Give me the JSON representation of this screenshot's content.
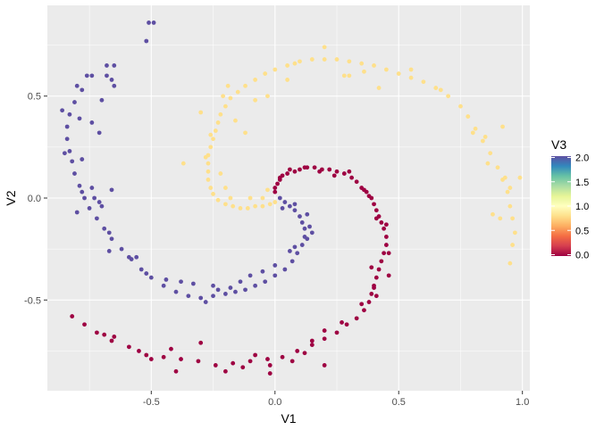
{
  "chart_data": {
    "type": "scatter",
    "title": "",
    "xlabel": "V1",
    "ylabel": "V2",
    "xlim": [
      -0.92,
      1.03
    ],
    "ylim": [
      -0.945,
      0.945
    ],
    "x_ticks": [
      {
        "value": -0.5,
        "label": "-0.5"
      },
      {
        "value": 0.0,
        "label": "0.0"
      },
      {
        "value": 0.5,
        "label": "0.5"
      },
      {
        "value": 1.0,
        "label": "1.0"
      }
    ],
    "y_ticks": [
      {
        "value": -0.5,
        "label": "-0.5"
      },
      {
        "value": 0.0,
        "label": "0.0"
      },
      {
        "value": 0.5,
        "label": "0.5"
      }
    ],
    "grid": true,
    "panel_background": "#ebebeb",
    "grid_color": "#ffffff",
    "color_scale": {
      "title": "V3",
      "domain": [
        0,
        2
      ],
      "palette": "Spectral",
      "stops": [
        "#9e0142",
        "#d53e4f",
        "#f46d43",
        "#fdae61",
        "#fee08b",
        "#ffffbf",
        "#e6f598",
        "#abdda4",
        "#66c2a5",
        "#3288bd",
        "#5e4fa2"
      ],
      "breaks": [
        {
          "value": 2.0,
          "label": "2.0"
        },
        {
          "value": 1.5,
          "label": "1.5"
        },
        {
          "value": 1.0,
          "label": "1.0"
        },
        {
          "value": 0.5,
          "label": "0.5"
        },
        {
          "value": 0.0,
          "label": "0.0"
        }
      ],
      "legend_position": "right"
    },
    "series": [
      {
        "v3": 0,
        "color": "#9e0142",
        "points": [
          [
            0.0,
            0.03
          ],
          [
            0.0,
            0.05
          ],
          [
            0.01,
            0.07
          ],
          [
            0.02,
            0.09
          ],
          [
            0.03,
            0.11
          ],
          [
            0.05,
            0.12
          ],
          [
            0.08,
            0.13
          ],
          [
            0.1,
            0.14
          ],
          [
            0.13,
            0.15
          ],
          [
            0.16,
            0.15
          ],
          [
            0.19,
            0.14
          ],
          [
            0.22,
            0.14
          ],
          [
            0.25,
            0.13
          ],
          [
            0.28,
            0.12
          ],
          [
            0.31,
            0.1
          ],
          [
            0.33,
            0.08
          ],
          [
            0.35,
            0.05
          ],
          [
            0.37,
            0.03
          ],
          [
            0.39,
            0.0
          ],
          [
            0.4,
            -0.03
          ],
          [
            0.41,
            -0.06
          ],
          [
            0.42,
            -0.09
          ],
          [
            0.43,
            -0.12
          ],
          [
            0.44,
            -0.15
          ],
          [
            0.45,
            -0.19
          ],
          [
            0.45,
            -0.23
          ],
          [
            0.44,
            -0.27
          ],
          [
            0.43,
            -0.31
          ],
          [
            0.42,
            -0.35
          ],
          [
            0.41,
            -0.39
          ],
          [
            0.4,
            -0.43
          ],
          [
            0.39,
            -0.47
          ],
          [
            0.38,
            -0.51
          ],
          [
            0.36,
            -0.55
          ],
          [
            0.33,
            -0.59
          ],
          [
            0.29,
            -0.62
          ],
          [
            0.25,
            -0.66
          ],
          [
            0.2,
            -0.69
          ],
          [
            0.15,
            -0.72
          ],
          [
            0.09,
            -0.75
          ],
          [
            0.03,
            -0.78
          ],
          [
            -0.03,
            -0.79
          ],
          [
            -0.1,
            -0.8
          ],
          [
            -0.17,
            -0.81
          ],
          [
            -0.24,
            -0.82
          ],
          [
            -0.31,
            -0.8
          ],
          [
            -0.38,
            -0.79
          ],
          [
            -0.45,
            -0.78
          ],
          [
            -0.52,
            -0.77
          ],
          [
            -0.59,
            -0.73
          ],
          [
            -0.66,
            -0.7
          ],
          [
            -0.72,
            -0.66
          ],
          [
            -0.77,
            -0.62
          ],
          [
            -0.82,
            -0.58
          ],
          [
            0.02,
            0.1
          ],
          [
            0.06,
            0.14
          ],
          [
            0.12,
            0.15
          ],
          [
            0.18,
            0.13
          ],
          [
            0.24,
            0.11
          ],
          [
            0.3,
            0.13
          ],
          [
            0.36,
            0.04
          ],
          [
            0.38,
            0.01
          ],
          [
            0.41,
            -0.1
          ],
          [
            0.45,
            -0.13
          ],
          [
            0.46,
            -0.27
          ],
          [
            0.39,
            -0.34
          ],
          [
            0.46,
            -0.38
          ],
          [
            0.4,
            -0.44
          ],
          [
            0.41,
            -0.48
          ],
          [
            0.35,
            -0.52
          ],
          [
            0.27,
            -0.61
          ],
          [
            0.2,
            -0.65
          ],
          [
            0.15,
            -0.7
          ],
          [
            0.12,
            -0.76
          ],
          [
            0.07,
            -0.8
          ],
          [
            0.2,
            -0.82
          ],
          [
            -0.02,
            -0.82
          ],
          [
            -0.08,
            -0.77
          ],
          [
            -0.2,
            -0.85
          ],
          [
            -0.5,
            -0.79
          ],
          [
            -0.42,
            -0.74
          ],
          [
            -0.55,
            -0.75
          ],
          [
            -0.65,
            -0.68
          ],
          [
            -0.69,
            -0.67
          ],
          [
            -0.4,
            -0.85
          ],
          [
            -0.13,
            -0.83
          ],
          [
            -0.3,
            -0.71
          ],
          [
            -0.02,
            -0.86
          ]
        ]
      },
      {
        "v3": 1,
        "color": "#fee08b",
        "points": [
          [
            0.0,
            -0.02
          ],
          [
            -0.02,
            -0.03
          ],
          [
            -0.05,
            -0.04
          ],
          [
            -0.08,
            -0.04
          ],
          [
            -0.11,
            -0.05
          ],
          [
            -0.14,
            -0.05
          ],
          [
            -0.17,
            -0.04
          ],
          [
            -0.2,
            -0.03
          ],
          [
            -0.23,
            -0.01
          ],
          [
            -0.25,
            0.02
          ],
          [
            -0.26,
            0.05
          ],
          [
            -0.27,
            0.09
          ],
          [
            -0.27,
            0.13
          ],
          [
            -0.27,
            0.17
          ],
          [
            -0.27,
            0.21
          ],
          [
            -0.26,
            0.25
          ],
          [
            -0.25,
            0.29
          ],
          [
            -0.24,
            0.33
          ],
          [
            -0.23,
            0.37
          ],
          [
            -0.22,
            0.41
          ],
          [
            -0.2,
            0.45
          ],
          [
            -0.18,
            0.49
          ],
          [
            -0.15,
            0.52
          ],
          [
            -0.12,
            0.55
          ],
          [
            -0.08,
            0.58
          ],
          [
            -0.04,
            0.61
          ],
          [
            0.0,
            0.63
          ],
          [
            0.05,
            0.65
          ],
          [
            0.1,
            0.67
          ],
          [
            0.15,
            0.68
          ],
          [
            0.2,
            0.68
          ],
          [
            0.25,
            0.68
          ],
          [
            0.3,
            0.67
          ],
          [
            0.35,
            0.66
          ],
          [
            0.4,
            0.65
          ],
          [
            0.45,
            0.63
          ],
          [
            0.5,
            0.61
          ],
          [
            0.55,
            0.59
          ],
          [
            0.6,
            0.57
          ],
          [
            0.65,
            0.54
          ],
          [
            0.7,
            0.5
          ],
          [
            0.75,
            0.45
          ],
          [
            0.78,
            0.4
          ],
          [
            0.81,
            0.34
          ],
          [
            0.84,
            0.28
          ],
          [
            0.87,
            0.22
          ],
          [
            0.9,
            0.15
          ],
          [
            0.92,
            0.09
          ],
          [
            0.94,
            0.03
          ],
          [
            0.95,
            -0.04
          ],
          [
            0.96,
            -0.1
          ],
          [
            0.97,
            -0.17
          ],
          [
            0.96,
            -0.23
          ],
          [
            0.95,
            -0.32
          ],
          [
            -0.03,
            0.04
          ],
          [
            -0.1,
            0.0
          ],
          [
            -0.18,
            0.0
          ],
          [
            -0.22,
            0.12
          ],
          [
            -0.28,
            0.2
          ],
          [
            -0.3,
            0.42
          ],
          [
            -0.21,
            0.5
          ],
          [
            -0.19,
            0.55
          ],
          [
            -0.08,
            0.48
          ],
          [
            -0.03,
            0.5
          ],
          [
            0.05,
            0.58
          ],
          [
            0.08,
            0.66
          ],
          [
            0.2,
            0.74
          ],
          [
            0.3,
            0.6
          ],
          [
            0.36,
            0.62
          ],
          [
            0.42,
            0.54
          ],
          [
            0.55,
            0.63
          ],
          [
            0.67,
            0.53
          ],
          [
            0.8,
            0.32
          ],
          [
            0.86,
            0.17
          ],
          [
            0.93,
            0.1
          ],
          [
            0.88,
            -0.08
          ],
          [
            0.85,
            0.3
          ],
          [
            -0.37,
            0.17
          ],
          [
            -0.26,
            0.31
          ],
          [
            -0.12,
            0.32
          ],
          [
            -0.16,
            0.38
          ],
          [
            -0.2,
            0.05
          ],
          [
            -0.05,
            0.0
          ],
          [
            0.28,
            0.6
          ],
          [
            0.92,
            0.35
          ],
          [
            0.99,
            0.1
          ],
          [
            0.95,
            0.05
          ],
          [
            0.91,
            -0.1
          ]
        ]
      },
      {
        "v3": 2,
        "color": "#5e4fa2",
        "points": [
          [
            0.02,
            0.0
          ],
          [
            0.04,
            -0.02
          ],
          [
            0.06,
            -0.04
          ],
          [
            0.08,
            -0.06
          ],
          [
            0.1,
            -0.09
          ],
          [
            0.11,
            -0.12
          ],
          [
            0.12,
            -0.15
          ],
          [
            0.12,
            -0.19
          ],
          [
            0.11,
            -0.23
          ],
          [
            0.09,
            -0.27
          ],
          [
            0.07,
            -0.31
          ],
          [
            0.04,
            -0.35
          ],
          [
            0.0,
            -0.38
          ],
          [
            -0.04,
            -0.41
          ],
          [
            -0.08,
            -0.43
          ],
          [
            -0.12,
            -0.45
          ],
          [
            -0.16,
            -0.46
          ],
          [
            -0.2,
            -0.47
          ],
          [
            -0.25,
            -0.48
          ],
          [
            -0.3,
            -0.49
          ],
          [
            -0.35,
            -0.48
          ],
          [
            -0.4,
            -0.46
          ],
          [
            -0.45,
            -0.43
          ],
          [
            -0.5,
            -0.39
          ],
          [
            -0.54,
            -0.35
          ],
          [
            -0.58,
            -0.3
          ],
          [
            -0.62,
            -0.25
          ],
          [
            -0.66,
            -0.2
          ],
          [
            -0.69,
            -0.15
          ],
          [
            -0.72,
            -0.1
          ],
          [
            -0.75,
            -0.05
          ],
          [
            -0.77,
            0.0
          ],
          [
            -0.79,
            0.06
          ],
          [
            -0.81,
            0.12
          ],
          [
            -0.82,
            0.18
          ],
          [
            -0.83,
            0.23
          ],
          [
            -0.84,
            0.29
          ],
          [
            -0.84,
            0.35
          ],
          [
            -0.83,
            0.41
          ],
          [
            -0.81,
            0.47
          ],
          [
            -0.78,
            0.53
          ],
          [
            -0.76,
            0.6
          ],
          [
            -0.74,
            0.6
          ],
          [
            -0.68,
            0.6
          ],
          [
            -0.65,
            0.65
          ],
          [
            -0.68,
            0.65
          ],
          [
            -0.66,
            0.58
          ],
          [
            -0.65,
            0.55
          ],
          [
            -0.52,
            0.77
          ],
          [
            -0.51,
            0.86
          ],
          [
            -0.49,
            0.86
          ],
          [
            0.08,
            -0.03
          ],
          [
            0.13,
            -0.08
          ],
          [
            0.14,
            -0.14
          ],
          [
            0.13,
            -0.2
          ],
          [
            0.08,
            -0.24
          ],
          [
            0.06,
            -0.26
          ],
          [
            0.0,
            -0.33
          ],
          [
            -0.05,
            -0.36
          ],
          [
            -0.1,
            -0.38
          ],
          [
            -0.18,
            -0.44
          ],
          [
            -0.23,
            -0.45
          ],
          [
            -0.28,
            -0.51
          ],
          [
            -0.33,
            -0.42
          ],
          [
            -0.38,
            -0.41
          ],
          [
            -0.44,
            -0.4
          ],
          [
            -0.52,
            -0.37
          ],
          [
            -0.56,
            -0.29
          ],
          [
            -0.59,
            -0.29
          ],
          [
            -0.67,
            -0.26
          ],
          [
            -0.67,
            -0.17
          ],
          [
            -0.7,
            -0.04
          ],
          [
            -0.73,
            0.0
          ],
          [
            -0.78,
            0.03
          ],
          [
            -0.8,
            -0.07
          ],
          [
            -0.78,
            0.19
          ],
          [
            -0.71,
            0.32
          ],
          [
            -0.74,
            0.37
          ],
          [
            -0.79,
            0.39
          ],
          [
            -0.7,
            0.48
          ],
          [
            -0.8,
            0.55
          ],
          [
            -0.86,
            0.43
          ],
          [
            -0.85,
            0.22
          ],
          [
            -0.74,
            0.05
          ],
          [
            -0.66,
            0.04
          ],
          [
            -0.71,
            -0.02
          ],
          [
            0.15,
            -0.17
          ],
          [
            0.03,
            -0.05
          ],
          [
            -0.14,
            -0.41
          ],
          [
            -0.25,
            -0.43
          ]
        ]
      }
    ]
  }
}
